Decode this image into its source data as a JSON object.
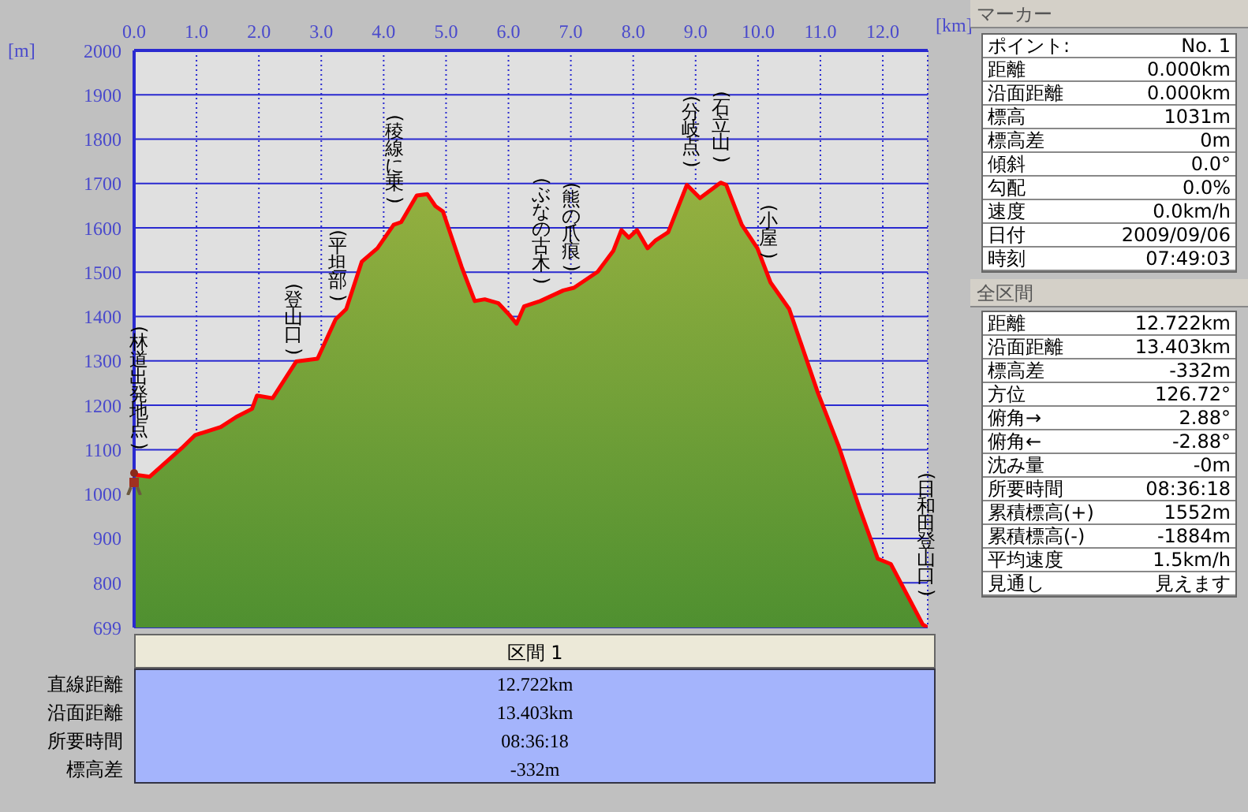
{
  "chart_data": {
    "type": "area",
    "xlabel": "[km]",
    "ylabel": "[m]",
    "x": [
      0,
      0.25,
      0.76,
      0.98,
      1.39,
      1.64,
      1.89,
      1.97,
      2.22,
      2.6,
      2.94,
      3.23,
      3.4,
      3.65,
      3.9,
      4.16,
      4.28,
      4.53,
      4.7,
      4.83,
      4.95,
      5.25,
      5.46,
      5.62,
      5.84,
      6.0,
      6.13,
      6.25,
      6.51,
      6.88,
      7.05,
      7.43,
      7.68,
      7.81,
      7.93,
      8.06,
      8.23,
      8.36,
      8.56,
      8.86,
      9.07,
      9.4,
      9.49,
      9.74,
      9.99,
      10.2,
      10.5,
      10.96,
      11.29,
      11.63,
      11.92,
      12.13,
      12.64,
      12.72
    ],
    "series": [
      {
        "color": "#ff0000",
        "values": [
          1044,
          1039,
          1103,
          1133,
          1151,
          1174,
          1192,
          1222,
          1216,
          1299,
          1305,
          1394,
          1417,
          1524,
          1554,
          1607,
          1613,
          1673,
          1676,
          1649,
          1637,
          1512,
          1435,
          1439,
          1430,
          1406,
          1384,
          1423,
          1435,
          1459,
          1465,
          1501,
          1548,
          1595,
          1578,
          1595,
          1554,
          1572,
          1590,
          1697,
          1667,
          1702,
          1697,
          1607,
          1554,
          1477,
          1417,
          1228,
          1109,
          967,
          854,
          842,
          706,
          699
        ]
      }
    ],
    "xlim": [
      0,
      12.72
    ],
    "xticks": [
      {
        "value": 0,
        "label": "0.0"
      },
      {
        "value": 1,
        "label": "1.0"
      },
      {
        "value": 2,
        "label": "2.0"
      },
      {
        "value": 3,
        "label": "3.0"
      },
      {
        "value": 4,
        "label": "4.0"
      },
      {
        "value": 5,
        "label": "5.0"
      },
      {
        "value": 6,
        "label": "6.0"
      },
      {
        "value": 7,
        "label": "7.0"
      },
      {
        "value": 8,
        "label": "8.0"
      },
      {
        "value": 9,
        "label": "9.0"
      },
      {
        "value": 10,
        "label": "10.0"
      },
      {
        "value": 11,
        "label": "11.0"
      },
      {
        "value": 12,
        "label": "12.0"
      }
    ],
    "ylim": [
      699,
      2000
    ],
    "yticks": [
      699,
      800,
      900,
      1000,
      1100,
      1200,
      1300,
      1400,
      1500,
      1600,
      1700,
      1800,
      1900,
      2000
    ],
    "grid": true,
    "legend": false,
    "annotations": [
      "(林道出発地点)",
      "(登山口)",
      "(平坦部)",
      "(稜線に乗)",
      "(ぶなの古木)",
      "(熊の爪痕)",
      "(分岐点)",
      "(石立山)",
      "(小屋)",
      "(日和田登山口)",
      "マーカー",
      "ポイント:",
      "No. 1",
      "距離",
      "0.000km",
      "沿面距離",
      "0.000km",
      "標高",
      "1031m",
      "標高差",
      "0m",
      "傾斜",
      "0.0°",
      "勾配",
      "0.0%",
      "速度",
      "0.0km/h",
      "日付",
      "2009/09/06",
      "時刻",
      "07:49:03",
      "全区間",
      "距離",
      "12.722km",
      "沿面距離",
      "13.403km",
      "標高差",
      "-332m",
      "方位",
      "126.72°",
      "俯角→",
      "2.88°",
      "俯角←",
      "-2.88°",
      "沈み量",
      "-0m",
      "所要時間",
      "08:36:18",
      "累積標高(+)",
      "1552m",
      "累積標高(-)",
      "-1884m",
      "平均速度",
      "1.5km/h",
      "見通し",
      "見えます",
      "区間 1",
      "直線距離",
      "沿面距離",
      "所要時間",
      "標高差",
      "12.722km",
      "13.403km",
      "08:36:18",
      "-332m"
    ]
  }
}
